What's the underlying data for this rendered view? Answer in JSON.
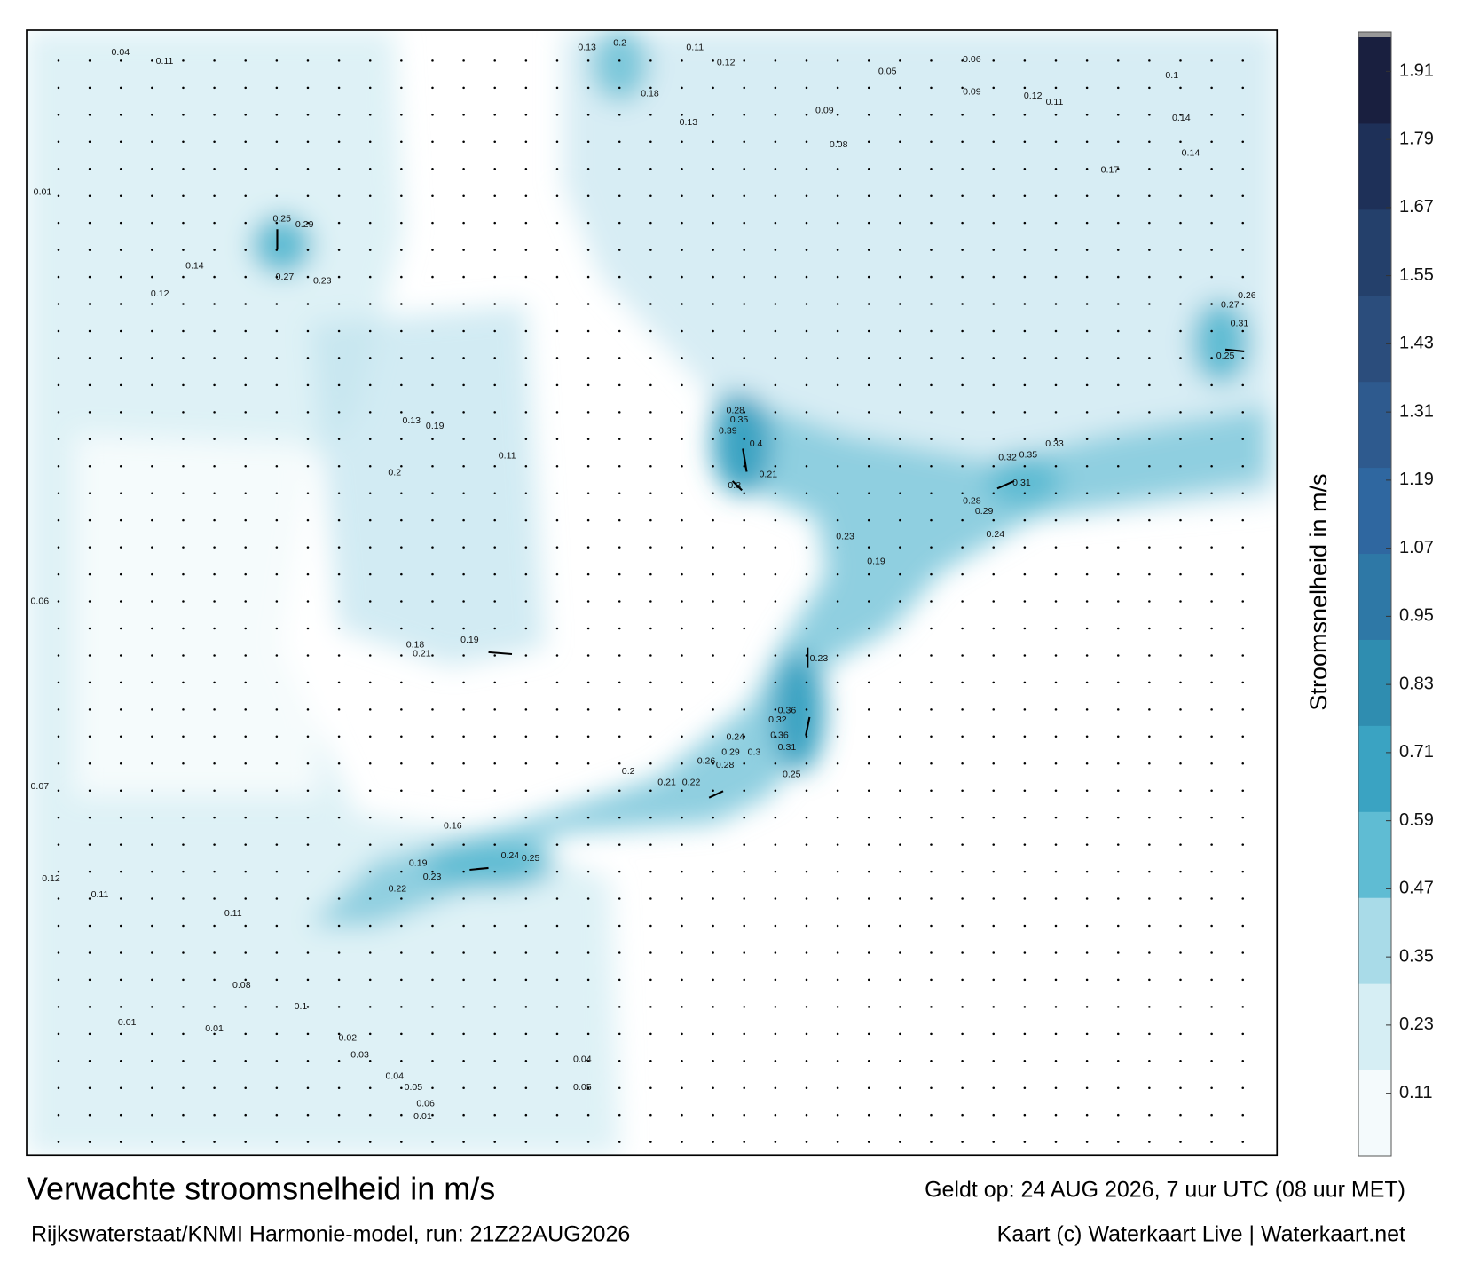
{
  "title": "Verwachte stroomsnelheid in m/s",
  "subtitle": "Rijkswaterstaat/KNMI Harmonie-model, run: 21Z22AUG2026",
  "valid_time": "Geldt op: 24 AUG 2026, 7 uur UTC (08 uur MET)",
  "credit": "Kaart (c) Waterkaart Live | Waterkaart.net",
  "colorbar": {
    "label": "Stroomsnelheid in m/s",
    "lim": [
      0,
      1.97
    ],
    "ticks": [
      0.11,
      0.23,
      0.35,
      0.47,
      0.59,
      0.71,
      0.83,
      0.95,
      1.07,
      1.19,
      1.31,
      1.43,
      1.55,
      1.67,
      1.79,
      1.91
    ],
    "colors": [
      "#f4fafc",
      "#d6eef4",
      "#a9dbe8",
      "#5fbcd3",
      "#3aa3c2",
      "#2f8db0",
      "#2e78a6",
      "#2f67a0",
      "#2e5a8e",
      "#2b4d7c",
      "#24406b",
      "#1e3058",
      "#191f3f"
    ]
  },
  "map_labels": [
    "0.04",
    "0.11",
    "0.2",
    "0.13",
    "0.11",
    "0.12",
    "0.06",
    "0.05",
    "0.09",
    "0.12",
    "0.11",
    "0.13",
    "0.18",
    "0.09",
    "0.08",
    "0.17",
    "0.14",
    "0.25",
    "0.29",
    "0.27",
    "0.23",
    "0.14",
    "0.12",
    "0.28",
    "0.35",
    "0.39",
    "0.4",
    "0.3",
    "0.21",
    "0.23",
    "0.19",
    "0.32",
    "0.35",
    "0.33",
    "0.28",
    "0.29",
    "0.24",
    "0.31",
    "0.23",
    "0.36",
    "0.32",
    "0.36",
    "0.31",
    "0.25",
    "0.29",
    "0.26",
    "0.28",
    "0.3",
    "0.24",
    "0.22",
    "0.21",
    "0.2",
    "0.24",
    "0.25",
    "0.23",
    "0.22",
    "0.19",
    "0.16",
    "0.21",
    "0.19",
    "0.18",
    "0.13",
    "0.19",
    "0.11",
    "0.2",
    "0.1",
    "0.14",
    "0.26",
    "0.31",
    "0.27",
    "0.25",
    "0.12",
    "0.11",
    "0.11",
    "0.08",
    "0.1",
    "0.01",
    "0.01",
    "0.02",
    "0.03",
    "0.04",
    "0.05",
    "0.06",
    "0.01",
    "0.05",
    "0.04",
    "0.06",
    "0.07",
    "0.01"
  ]
}
